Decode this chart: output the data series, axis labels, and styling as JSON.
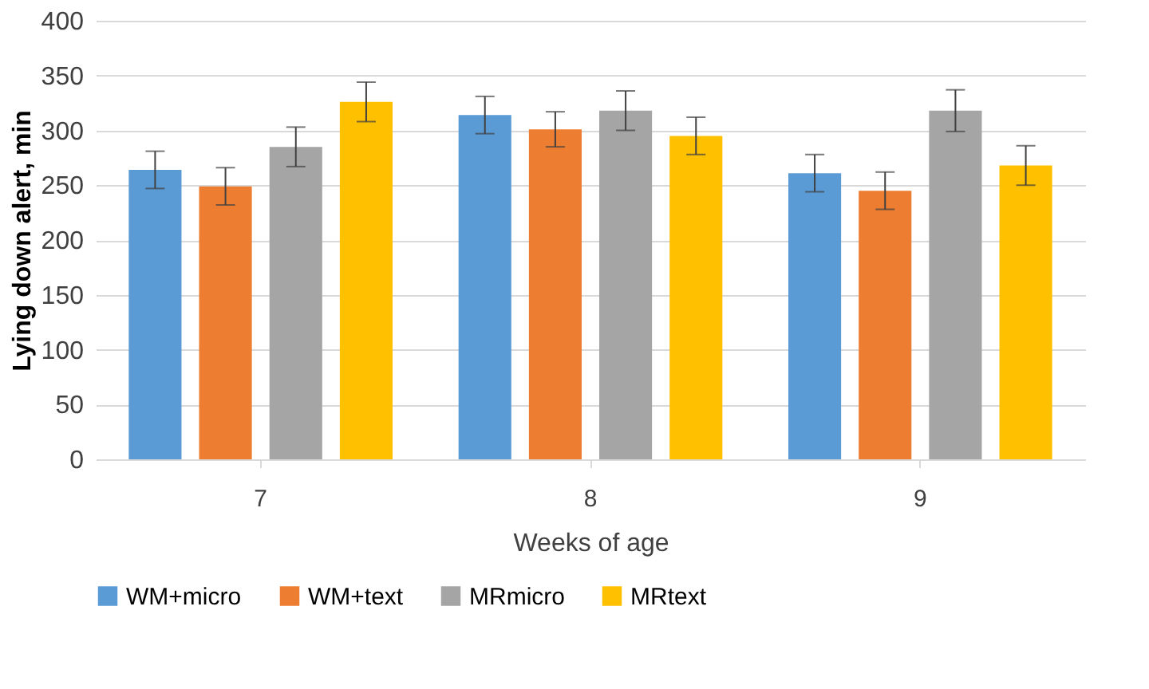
{
  "chart_data": {
    "type": "bar",
    "xlabel": "Weeks of age",
    "ylabel": "Lying down alert, min",
    "categories": [
      "7",
      "8",
      "9"
    ],
    "series": [
      {
        "name": "WM+micro",
        "color": "#5b9bd5",
        "values": [
          264,
          314,
          261
        ],
        "errors": [
          17,
          17,
          17
        ]
      },
      {
        "name": "WM+text",
        "color": "#ed7d31",
        "values": [
          249,
          301,
          245
        ],
        "errors": [
          17,
          16,
          17
        ]
      },
      {
        "name": "MRmicro",
        "color": "#a5a5a5",
        "values": [
          285,
          318,
          318
        ],
        "errors": [
          18,
          18,
          19
        ]
      },
      {
        "name": "MRtext",
        "color": "#ffc000",
        "values": [
          326,
          295,
          268
        ],
        "errors": [
          18,
          17,
          18
        ]
      }
    ],
    "ylim": [
      0,
      400
    ],
    "yticks": [
      0,
      50,
      100,
      150,
      200,
      250,
      300,
      350,
      400
    ],
    "grid": "y",
    "legend": "bottom"
  }
}
